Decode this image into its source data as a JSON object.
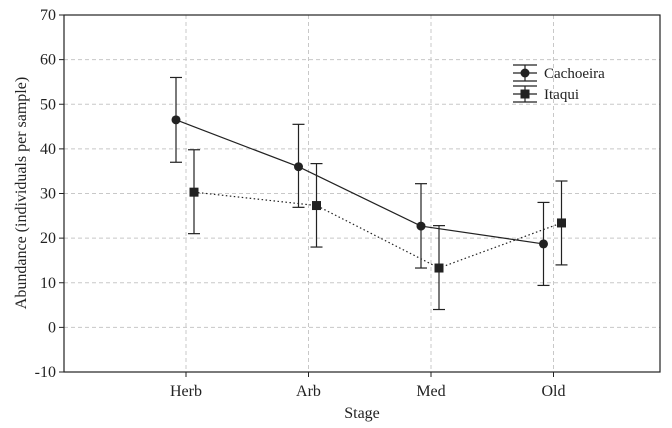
{
  "chart_data": {
    "type": "line",
    "title": "",
    "xlabel": "Stage",
    "ylabel": "Abundance (individuals  per sample)",
    "categories": [
      "Herb",
      "Arb",
      "Med",
      "Old"
    ],
    "ylim": [
      -10,
      70
    ],
    "yticks": [
      -10,
      0,
      10,
      20,
      30,
      40,
      50,
      60,
      70
    ],
    "grid": true,
    "legend_position": "top-right",
    "series": [
      {
        "name": "Cachoeira",
        "marker": "circle",
        "line_style": "solid",
        "color": "#222222",
        "values": [
          46.5,
          36.0,
          22.7,
          18.7
        ],
        "error_low": [
          37.0,
          26.9,
          13.3,
          9.4
        ],
        "error_high": [
          56.0,
          45.5,
          32.2,
          28.0
        ]
      },
      {
        "name": "Itaqui",
        "marker": "square",
        "line_style": "dotted",
        "color": "#222222",
        "values": [
          30.3,
          27.3,
          13.3,
          23.4
        ],
        "error_low": [
          21.0,
          18.0,
          4.0,
          14.0
        ],
        "error_high": [
          39.8,
          36.7,
          22.8,
          32.8
        ]
      }
    ]
  }
}
